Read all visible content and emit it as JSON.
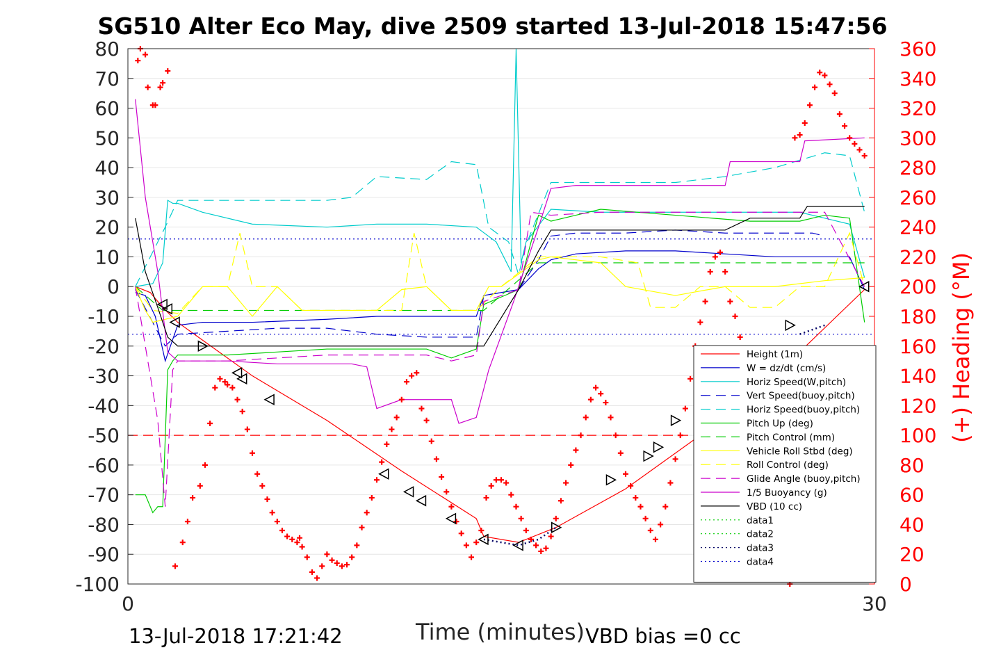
{
  "chart_data": {
    "type": "line",
    "title": "SG510 Alter Eco May, dive 2509 started 13-Jul-2018 15:47:56",
    "xlabel": "Time (minutes)",
    "ylabel": "",
    "y2label": "(+) Heading (°M)",
    "xlim": [
      0,
      30
    ],
    "ylim": [
      -100,
      80
    ],
    "y2lim": [
      0,
      360
    ],
    "xticks": [
      "0",
      "30"
    ],
    "yticks": [
      "80",
      "70",
      "60",
      "50",
      "40",
      "30",
      "20",
      "10",
      "0",
      "-10",
      "-20",
      "-30",
      "-40",
      "-50",
      "-60",
      "-70",
      "-80",
      "-90",
      "-100"
    ],
    "y2ticks": [
      "360",
      "340",
      "320",
      "300",
      "280",
      "260",
      "240",
      "220",
      "200",
      "180",
      "160",
      "140",
      "120",
      "100",
      "80",
      "60",
      "40",
      "20",
      "0"
    ],
    "grid": "horizontal",
    "legend_position": "bottom-right",
    "footer_left": "13-Jul-2018 17:21:42",
    "footer_right": "VBD bias =0 cc",
    "reference_lines": [
      {
        "y": 16,
        "color": "#0000cc",
        "style": "dotted"
      },
      {
        "y": -16,
        "color": "#0000cc",
        "style": "dotted"
      },
      {
        "y": -50,
        "color": "#ff0000",
        "style": "dashed"
      }
    ],
    "series": [
      {
        "name": "Height (1m)",
        "color": "#ff0000",
        "dash": "",
        "width": 1.2,
        "x": [
          0.3,
          0.9,
          1.4,
          2,
          3,
          5,
          8,
          11,
          14,
          14.3,
          15.7,
          17.2,
          20,
          23,
          26,
          29.6
        ],
        "y": [
          0,
          -2,
          -7,
          -12,
          -18,
          -30,
          -45,
          -62,
          -78,
          -84,
          -86,
          -81,
          -68,
          -50,
          -30,
          -1
        ]
      },
      {
        "name": "W = dz/dt (cm/s)",
        "color": "#0000cc",
        "dash": "",
        "width": 1.2,
        "x": [
          0.3,
          0.7,
          1.1,
          1.5,
          2,
          3,
          5,
          8,
          10,
          12,
          14,
          14.3,
          15.7,
          16.5,
          17,
          18,
          20,
          22,
          24,
          26,
          28,
          29,
          29.6
        ],
        "y": [
          -2,
          -3,
          -10,
          -25,
          -13,
          -12,
          -12,
          -11,
          -10,
          -10,
          -10,
          -3,
          -1,
          6,
          9,
          11,
          12,
          12,
          11,
          10,
          10,
          10,
          -1
        ]
      },
      {
        "name": "Horiz Speed(W,pitch)",
        "color": "#00cccc",
        "dash": "",
        "width": 1.2,
        "x": [
          0.3,
          1,
          1.4,
          1.6,
          1.8,
          2,
          3,
          5,
          8,
          10,
          12,
          14,
          14.8,
          15.4,
          15.6,
          15.8,
          16,
          17,
          19,
          22,
          25,
          27,
          28,
          29,
          29.6
        ],
        "y": [
          0,
          1,
          8,
          29,
          28,
          28,
          25,
          21,
          20,
          21,
          21,
          20,
          15,
          5,
          80,
          8,
          15,
          26,
          25,
          25,
          25,
          25,
          23,
          21,
          3
        ]
      },
      {
        "name": "Vert Speed(buoy,pitch)",
        "color": "#0000cc",
        "dash": "14,8",
        "width": 1.2,
        "x": [
          0.3,
          1.5,
          2,
          4,
          6,
          8,
          10,
          12,
          14,
          14.3,
          15.7,
          16.5,
          17,
          18,
          20,
          22,
          24,
          26,
          27.5,
          28
        ],
        "y": [
          -1,
          -20,
          -16,
          -15,
          -14,
          -14,
          -16,
          -17,
          -17,
          -3,
          -1,
          9,
          17,
          18,
          18,
          19,
          18,
          18,
          18,
          17
        ]
      },
      {
        "name": "Horiz Speed(buoy,pitch)",
        "color": "#00cccc",
        "dash": "14,8",
        "width": 1.2,
        "x": [
          0.3,
          1.5,
          2,
          4,
          6,
          8,
          9,
          10,
          12,
          13,
          14,
          14.5,
          15.3,
          15.7,
          16,
          17,
          19,
          22,
          24,
          26,
          28,
          29,
          29.6
        ],
        "y": [
          0,
          20,
          29,
          29,
          29,
          29,
          30,
          37,
          36,
          42,
          41,
          20,
          15,
          4,
          14,
          35,
          35,
          35,
          37,
          40,
          45,
          44,
          25
        ]
      },
      {
        "name": "Pitch Up (deg)",
        "color": "#00cc00",
        "dash": "",
        "width": 1.2,
        "x": [
          0.3,
          0.7,
          1,
          1.2,
          1.4,
          1.6,
          1.8,
          2,
          4,
          6,
          8,
          10,
          12,
          13,
          14,
          14.3,
          15.7,
          16.2,
          16.5,
          17,
          18,
          19,
          22,
          25,
          27,
          28,
          29,
          29.6
        ],
        "y": [
          -70,
          -70,
          -76,
          -74,
          -74,
          -28,
          -25,
          -23,
          -23,
          -22,
          -21,
          -21,
          -21,
          -24,
          -21,
          -6,
          -1,
          15,
          24,
          22,
          24,
          26,
          24,
          22,
          22,
          24,
          23,
          -12
        ]
      },
      {
        "name": "Pitch Control (mm)",
        "color": "#00cc00",
        "dash": "14,8",
        "width": 1.2,
        "x": [
          0.3,
          1.4,
          1.6,
          3,
          14,
          14.3,
          16.5,
          17,
          29,
          29.6
        ],
        "y": [
          0,
          -8,
          -8,
          -8,
          -8,
          -8,
          8,
          8,
          8,
          8
        ],
        "dashed_y_ref": true
      },
      {
        "name": "Vehicle Roll Stbd (deg)",
        "color": "#ffff00",
        "dash": "",
        "width": 1.2,
        "x": [
          0.3,
          0.7,
          1,
          2,
          3,
          4,
          5,
          6,
          7,
          8,
          10,
          11,
          12,
          13,
          14,
          14.5,
          15,
          16.5,
          17,
          19,
          20,
          22,
          24,
          26,
          28,
          29.6
        ],
        "y": [
          0,
          -8,
          -12,
          -10,
          0,
          0,
          -10,
          0,
          -8,
          -8,
          -8,
          -1,
          0,
          -8,
          -8,
          0,
          0,
          9,
          10,
          8,
          0,
          -3,
          0,
          0,
          2,
          3
        ]
      },
      {
        "name": "Roll Control (deg)",
        "color": "#ffff00",
        "dash": "14,8",
        "width": 1.2,
        "x": [
          0.3,
          1,
          2,
          3,
          4,
          4.5,
          5,
          6,
          7,
          8,
          10,
          11,
          11.5,
          12,
          13,
          14,
          15,
          16.5,
          17,
          19,
          20.5,
          21,
          22,
          23,
          24,
          25,
          26,
          27,
          28,
          29,
          29.6
        ],
        "y": [
          0,
          -8,
          -9,
          0,
          0,
          18,
          0,
          0,
          -8,
          -8,
          -8,
          -8,
          18,
          0,
          -8,
          -8,
          0,
          10,
          10,
          10,
          8,
          -7,
          -7,
          0,
          0,
          -7,
          -7,
          0,
          0,
          18,
          0
        ]
      },
      {
        "name": "Glide Angle (buoy,pitch)",
        "color": "#cc00cc",
        "dash": "14,8",
        "width": 1.2,
        "x": [
          0.3,
          1.2,
          1.5,
          1.8,
          2,
          4,
          6,
          8,
          10,
          12,
          13,
          14,
          14.3,
          15.7,
          16.2,
          17,
          19,
          22,
          25,
          28,
          29.6
        ],
        "y": [
          0,
          -45,
          -74,
          -28,
          -25,
          -25,
          -24,
          -23,
          -23,
          -23,
          -25,
          -23,
          -5,
          -1,
          25,
          24,
          25,
          25,
          25,
          25,
          0
        ]
      },
      {
        "name": "1/5 Buoyancy (g)",
        "color": "#cc00cc",
        "dash": "",
        "width": 1.2,
        "x": [
          0.3,
          0.7,
          1.2,
          1.6,
          2,
          4,
          6,
          8,
          9,
          9.6,
          10,
          11,
          12,
          13,
          13.3,
          14,
          14.5,
          15.5,
          16.5,
          17,
          18,
          22,
          24,
          24.2,
          26,
          27,
          27.2,
          29.6
        ],
        "y": [
          63,
          30,
          5,
          -22,
          -25,
          -25,
          -26,
          -26,
          -26,
          -27,
          -41,
          -38,
          -38,
          -38,
          -46,
          -44,
          -28,
          -5,
          20,
          33,
          34,
          34,
          34,
          42,
          42,
          42,
          49,
          50
        ]
      },
      {
        "name": "VBD (10 cc)",
        "color": "#000000",
        "dash": "",
        "width": 1.2,
        "x": [
          0.3,
          0.7,
          1.2,
          1.6,
          2,
          4,
          6,
          8,
          10,
          12,
          14.3,
          15.7,
          16.5,
          17,
          18,
          21,
          24,
          25,
          26,
          27,
          27.3,
          29.6
        ],
        "y": [
          23,
          5,
          -7,
          -17,
          -20,
          -20,
          -20,
          -20,
          -20,
          -20,
          -20,
          -1,
          12,
          19,
          19,
          19,
          19,
          23,
          23,
          23,
          27,
          27
        ]
      },
      {
        "name": "data1",
        "color": "#00cc00",
        "dash": "2,4",
        "width": 1.2,
        "x": [],
        "y": []
      },
      {
        "name": "data2",
        "color": "#00cc00",
        "dash": "2,4",
        "width": 1.2,
        "x": [],
        "y": []
      },
      {
        "name": "data3",
        "color": "#000066",
        "dash": "2,4",
        "width": 2.5,
        "x": [
          14.3,
          15,
          15.7,
          16.5,
          17.2
        ],
        "y": [
          -85,
          -86,
          -87,
          -85,
          -81
        ],
        "hidden_in_legend": false
      },
      {
        "name": "data4",
        "color": "#0000cc",
        "dash": "2,4",
        "width": 1.2,
        "x": [],
        "y": []
      }
    ],
    "extra_lines": [
      {
        "color": "#000066",
        "dash": "2,4",
        "width": 2.5,
        "x": [
          27,
          27.5,
          28
        ],
        "y": [
          -16,
          -14.5,
          -13
        ]
      }
    ],
    "heading_points": {
      "color": "#ff0000",
      "axis": "right",
      "x": [
        0.4,
        0.5,
        0.7,
        0.8,
        1.0,
        1.1,
        1.3,
        1.4,
        1.6,
        1.9,
        2.2,
        2.4,
        2.6,
        2.9,
        3.1,
        3.3,
        3.5,
        3.7,
        3.9,
        4.0,
        4.2,
        4.4,
        4.6,
        4.8,
        5.0,
        5.2,
        5.4,
        5.6,
        5.8,
        6.0,
        6.2,
        6.4,
        6.6,
        6.8,
        6.9,
        7.0,
        7.2,
        7.4,
        7.6,
        7.8,
        8.0,
        8.2,
        8.4,
        8.6,
        8.8,
        9.0,
        9.2,
        9.4,
        9.6,
        9.8,
        10.0,
        10.2,
        10.4,
        10.6,
        10.8,
        11.0,
        11.2,
        11.4,
        11.6,
        11.8,
        12.0,
        12.2,
        12.4,
        12.6,
        12.8,
        13.0,
        13.2,
        13.4,
        13.6,
        13.8,
        14.0,
        14.2,
        14.4,
        14.6,
        14.8,
        15.0,
        15.2,
        15.4,
        15.6,
        15.8,
        16.0,
        16.2,
        16.4,
        16.6,
        16.8,
        17.0,
        17.2,
        17.4,
        17.6,
        17.8,
        18.0,
        18.2,
        18.4,
        18.6,
        18.8,
        19.0,
        19.2,
        19.4,
        19.6,
        19.8,
        20.0,
        20.2,
        20.4,
        20.6,
        20.8,
        21.0,
        21.2,
        21.4,
        21.6,
        21.8,
        22.0,
        22.2,
        22.4,
        22.6,
        22.8,
        23.0,
        23.2,
        23.4,
        23.6,
        23.8,
        24.0,
        24.2,
        24.4,
        24.6,
        24.8,
        25.0,
        25.2,
        25.4,
        25.6,
        25.8,
        26.0,
        26.2,
        26.4,
        26.6,
        26.8,
        27.0,
        27.2,
        27.4,
        27.6,
        27.8,
        28.0,
        28.2,
        28.4,
        28.6,
        28.8,
        29.0,
        29.2,
        29.4,
        29.6
      ],
      "y": [
        352,
        360,
        356,
        334,
        322,
        322,
        334,
        337,
        345,
        12,
        28,
        42,
        58,
        66,
        80,
        108,
        132,
        138,
        136,
        134,
        132,
        124,
        116,
        104,
        88,
        74,
        66,
        57,
        48,
        42,
        36,
        32,
        30,
        28,
        31,
        25,
        18,
        8,
        4,
        12,
        20,
        16,
        14,
        12,
        13,
        18,
        26,
        38,
        48,
        58,
        70,
        82,
        94,
        104,
        112,
        124,
        136,
        140,
        142,
        118,
        110,
        96,
        84,
        72,
        62,
        52,
        42,
        34,
        26,
        18,
        28,
        36,
        58,
        66,
        70,
        70,
        68,
        60,
        52,
        44,
        36,
        30,
        26,
        22,
        24,
        32,
        44,
        56,
        68,
        80,
        90,
        100,
        112,
        124,
        132,
        128,
        122,
        112,
        100,
        88,
        74,
        66,
        58,
        52,
        44,
        36,
        30,
        40,
        52,
        68,
        84,
        100,
        118,
        138,
        160,
        176,
        190,
        210,
        220,
        223,
        210,
        190,
        180,
        166,
        150,
        130,
        112,
        92,
        76,
        58,
        40,
        22,
        10,
        0,
        300,
        302,
        310,
        322,
        334,
        344,
        342,
        336,
        330,
        316,
        308,
        300,
        296,
        292,
        288
      ]
    },
    "markers": {
      "shape": "triangle",
      "color": "#000000",
      "x": [
        1.4,
        1.6,
        1.9,
        3.0,
        4.4,
        4.6,
        5.7,
        10.3,
        11.3,
        11.8,
        13.0,
        14.3,
        15.7,
        17.2,
        19.4,
        20.9,
        21.3,
        22.0,
        26.6,
        29.6
      ],
      "y": [
        -6,
        -7.5,
        -12,
        -20,
        -29,
        -31,
        -38,
        -63,
        -69,
        -72,
        -78,
        -85,
        -87,
        -81,
        -65,
        -57,
        -54,
        -45,
        -13,
        0
      ],
      "dir": [
        "left",
        "left",
        "left",
        "right",
        "left",
        "left",
        "left",
        "left",
        "left",
        "left",
        "left",
        "left",
        "left",
        "right",
        "right",
        "right",
        "right",
        "right",
        "right",
        "left"
      ]
    }
  }
}
